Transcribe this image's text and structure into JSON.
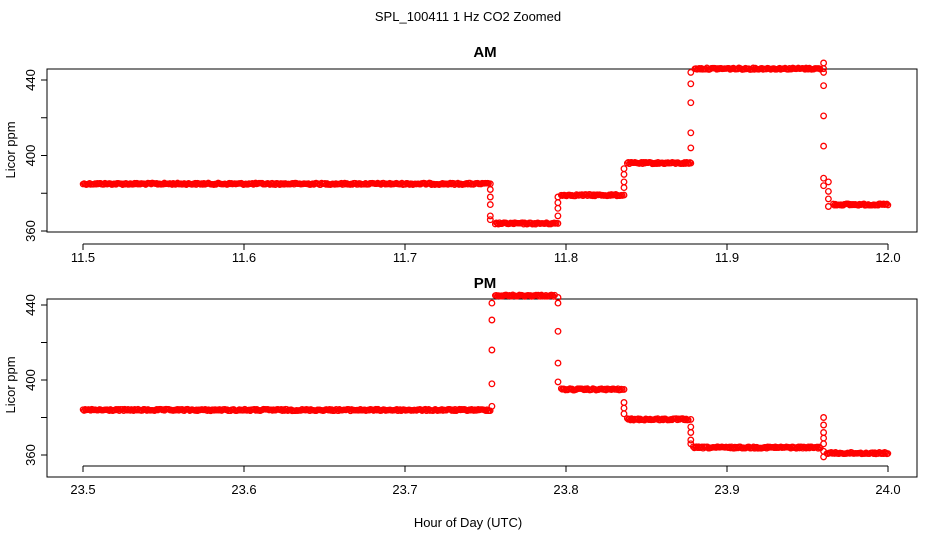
{
  "figure": {
    "title": "SPL_100411  1 Hz CO2 Zoomed",
    "xlabel": "Hour of Day (UTC)"
  },
  "colors": {
    "points": "#ff0000",
    "axis": "#000000"
  },
  "chart_data": [
    {
      "type": "scatter",
      "title": "AM",
      "xlabel": "",
      "ylabel": "Licor ppm",
      "xlim": [
        11.5,
        12.0
      ],
      "ylim": [
        360,
        452
      ],
      "xticks": [
        11.5,
        11.6,
        11.7,
        11.8,
        11.9,
        12.0
      ],
      "xtick_labels": [
        "11.5",
        "11.6",
        "11.7",
        "11.8",
        "11.9",
        "12.0"
      ],
      "yticks": [
        360,
        400,
        440
      ],
      "ytick_labels": [
        "360",
        "400",
        "440"
      ],
      "marker": "open-circle",
      "segments": [
        {
          "x_start": 11.5,
          "x_end": 11.752,
          "y": 385
        },
        {
          "x_start": 11.756,
          "x_end": 11.794,
          "y": 364
        },
        {
          "x_start": 11.797,
          "x_end": 11.835,
          "y": 379
        },
        {
          "x_start": 11.838,
          "x_end": 11.877,
          "y": 396
        },
        {
          "x_start": 11.88,
          "x_end": 11.958,
          "y": 446
        },
        {
          "x_start": 11.966,
          "x_end": 12.0,
          "y": 374
        }
      ],
      "transitions": [
        {
          "x": 11.753,
          "y": [
            385,
            382,
            378,
            374,
            368,
            366
          ]
        },
        {
          "x": 11.795,
          "y": [
            364,
            368,
            372,
            375,
            378
          ]
        },
        {
          "x": 11.836,
          "y": [
            379,
            383,
            386,
            390,
            393
          ]
        },
        {
          "x": 11.8775,
          "y": [
            396,
            404,
            412,
            428,
            438,
            444
          ]
        },
        {
          "x": 11.96,
          "y": [
            446,
            449,
            444,
            437,
            421,
            405,
            388,
            384
          ]
        },
        {
          "x": 11.963,
          "y": [
            386,
            381,
            377,
            373
          ]
        }
      ]
    },
    {
      "type": "scatter",
      "title": "PM",
      "xlabel": "",
      "ylabel": "Licor ppm",
      "xlim": [
        23.5,
        24.0
      ],
      "ylim": [
        355,
        450
      ],
      "xticks": [
        23.5,
        23.6,
        23.7,
        23.8,
        23.9,
        24.0
      ],
      "xtick_labels": [
        "23.5",
        "23.6",
        "23.7",
        "23.8",
        "23.9",
        "24.0"
      ],
      "yticks": [
        360,
        400,
        440
      ],
      "ytick_labels": [
        "360",
        "400",
        "440"
      ],
      "marker": "open-circle",
      "segments": [
        {
          "x_start": 23.5,
          "x_end": 23.753,
          "y": 384
        },
        {
          "x_start": 23.756,
          "x_end": 23.793,
          "y": 445
        },
        {
          "x_start": 23.797,
          "x_end": 23.835,
          "y": 395
        },
        {
          "x_start": 23.838,
          "x_end": 23.876,
          "y": 379
        },
        {
          "x_start": 23.879,
          "x_end": 23.958,
          "y": 364
        },
        {
          "x_start": 23.962,
          "x_end": 24.0,
          "y": 361
        }
      ],
      "transitions": [
        {
          "x": 23.754,
          "y": [
            386,
            398,
            416,
            432,
            441
          ]
        },
        {
          "x": 23.795,
          "y": [
            444,
            441,
            426,
            409,
            399
          ]
        },
        {
          "x": 23.836,
          "y": [
            395,
            388,
            385,
            382
          ]
        },
        {
          "x": 23.8775,
          "y": [
            379,
            375,
            372,
            368,
            366
          ]
        },
        {
          "x": 23.96,
          "y": [
            359,
            362,
            366,
            369,
            372,
            376,
            380
          ]
        }
      ]
    }
  ]
}
